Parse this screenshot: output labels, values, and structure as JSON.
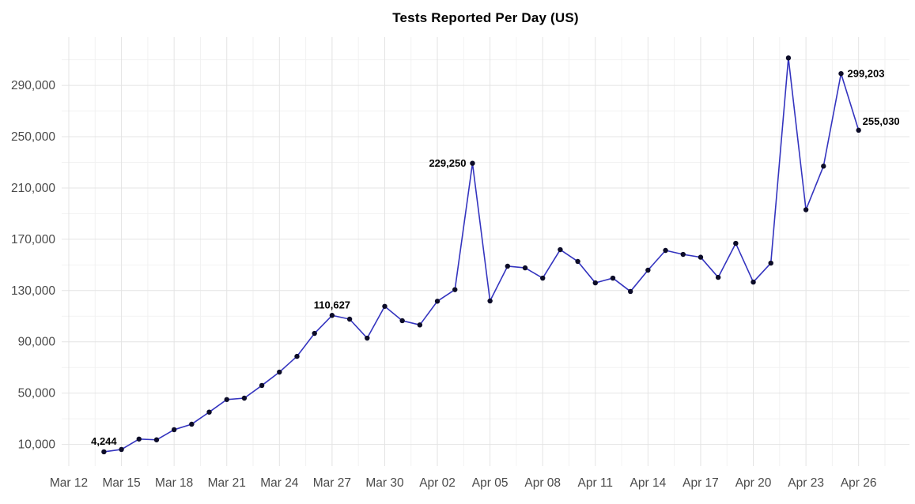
{
  "page": {
    "title": "Tests Reported Per Day (US)"
  },
  "chart_data": {
    "type": "line",
    "title": "Tests Reported Per Day (US)",
    "series_name": "tests-reported-per-day",
    "x": [
      "Mar 14",
      "Mar 15",
      "Mar 16",
      "Mar 17",
      "Mar 18",
      "Mar 19",
      "Mar 20",
      "Mar 21",
      "Mar 22",
      "Mar 23",
      "Mar 24",
      "Mar 25",
      "Mar 26",
      "Mar 27",
      "Mar 28",
      "Mar 29",
      "Mar 30",
      "Mar 31",
      "Apr 01",
      "Apr 02",
      "Apr 03",
      "Apr 04",
      "Apr 05",
      "Apr 06",
      "Apr 07",
      "Apr 08",
      "Apr 09",
      "Apr 10",
      "Apr 11",
      "Apr 12",
      "Apr 13",
      "Apr 14",
      "Apr 15",
      "Apr 16",
      "Apr 17",
      "Apr 18",
      "Apr 19",
      "Apr 20",
      "Apr 21",
      "Apr 22",
      "Apr 23",
      "Apr 24",
      "Apr 25",
      "Apr 26"
    ],
    "values": [
      4244,
      6100,
      14200,
      13600,
      21500,
      25800,
      35200,
      45000,
      46100,
      56000,
      66400,
      78700,
      96600,
      110627,
      107700,
      92900,
      117700,
      106500,
      103200,
      121700,
      130700,
      229250,
      121900,
      149000,
      147700,
      139700,
      161900,
      152700,
      136000,
      139700,
      129300,
      145900,
      161300,
      158200,
      156000,
      140300,
      166800,
      136600,
      151400,
      311400,
      193000,
      227000,
      299203,
      255030
    ],
    "annotations": [
      {
        "index": 0,
        "text": "4,244",
        "placement": "above"
      },
      {
        "index": 13,
        "text": "110,627",
        "placement": "above"
      },
      {
        "index": 21,
        "text": "229,250",
        "placement": "left"
      },
      {
        "index": 42,
        "text": "299,203",
        "placement": "right"
      },
      {
        "index": 43,
        "text": "255,030",
        "placement": "above-right"
      }
    ],
    "x_tick_labels": [
      "Mar 12",
      "Mar 15",
      "Mar 18",
      "Mar 21",
      "Mar 24",
      "Mar 27",
      "Mar 30",
      "Apr 02",
      "Apr 05",
      "Apr 08",
      "Apr 11",
      "Apr 14",
      "Apr 17",
      "Apr 20",
      "Apr 23",
      "Apr 26"
    ],
    "y_ticks": [
      10000,
      50000,
      90000,
      130000,
      170000,
      210000,
      250000,
      290000
    ],
    "y_tick_labels": [
      "10,000",
      "50,000",
      "90,000",
      "130,000",
      "170,000",
      "210,000",
      "250,000",
      "290,000"
    ],
    "xlabel": "",
    "ylabel": "",
    "ylim": [
      -7000,
      327600
    ],
    "x_tick_step_days": 3,
    "first_point_day_offset": 2,
    "grid": "major-and-minor",
    "legend": "none",
    "colors": {
      "line": "#3434bf",
      "point": "#0c0c28",
      "annotation_text": "#000000",
      "tick_text": "#4a4a4a",
      "grid_major": "#e4e4e4",
      "grid_minor": "#f2f2f2",
      "title_text": "#000000",
      "background": "#ffffff"
    }
  }
}
